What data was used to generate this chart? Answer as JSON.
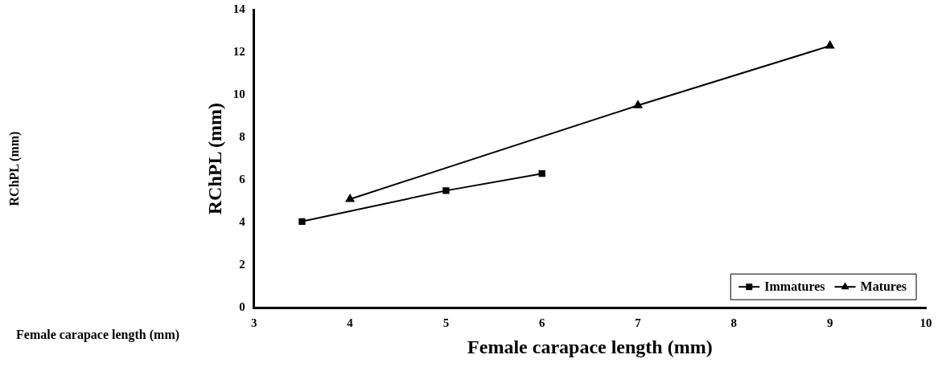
{
  "chart_data": {
    "type": "line",
    "xlabel": "Female carapace length (mm)",
    "ylabel": "RChPL (mm)",
    "annotations": [
      "RChPL (mm)",
      "Female carapace length (mm)"
    ],
    "series": [
      {
        "name": "Immatures",
        "color": "#000000",
        "marker": "square",
        "x": [
          3.5,
          5,
          6
        ],
        "values": [
          4.05,
          5.5,
          6.3
        ]
      },
      {
        "name": "Matures",
        "color": "#000000",
        "marker": "triangle",
        "x": [
          4,
          7,
          9
        ],
        "values": [
          5.1,
          9.5,
          12.3
        ]
      }
    ],
    "xlim": [
      3,
      10
    ],
    "xticks": [
      3,
      4,
      5,
      6,
      7,
      8,
      9,
      10
    ],
    "ylim": [
      0,
      14
    ],
    "yticks": [
      0,
      2,
      4,
      6,
      8,
      10,
      12,
      14
    ],
    "grid": false,
    "legend": "bottom right",
    "line_style": "solid"
  }
}
